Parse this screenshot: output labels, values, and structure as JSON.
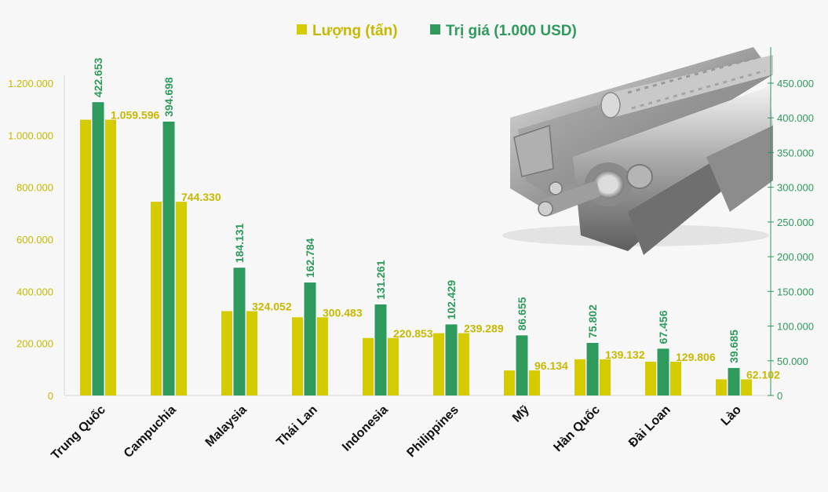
{
  "chart_data": {
    "type": "bar",
    "categories": [
      "Trung Quốc",
      "Campuchia",
      "Malaysia",
      "Thái Lan",
      "Indonesia",
      "Philippines",
      "Mỹ",
      "Hàn Quốc",
      "Đài Loan",
      "Lào"
    ],
    "series": [
      {
        "name": "Lượng (tấn)",
        "axis": "left",
        "color": "#d4cc00",
        "values": [
          1059596,
          744330,
          324052,
          300483,
          220853,
          239289,
          96134,
          139132,
          129806,
          62102
        ],
        "labels": [
          "1.059.596",
          "744.330",
          "324.052",
          "300.483",
          "220.853",
          "239.289",
          "96.134",
          "139.132",
          "129.806",
          "62.102"
        ]
      },
      {
        "name": "Trị giá (1.000 USD)",
        "axis": "right",
        "color": "#2e9a5c",
        "values": [
          422653,
          394698,
          184131,
          162784,
          131261,
          102429,
          86655,
          75802,
          67456,
          39685
        ],
        "labels": [
          "422.653",
          "394.698",
          "184.131",
          "162.784",
          "131.261",
          "102.429",
          "86.655",
          "75.802",
          "67.456",
          "39.685"
        ]
      }
    ],
    "y_left": {
      "range": [
        0,
        1200000
      ],
      "ticks": [
        0,
        200000,
        400000,
        600000,
        800000,
        1000000,
        1200000
      ],
      "tick_labels": [
        "0",
        "200.000",
        "400.000",
        "600.000",
        "800.000",
        "1.000.000",
        "1.200.000"
      ]
    },
    "y_right": {
      "range": [
        0,
        450000
      ],
      "ticks": [
        0,
        50000,
        100000,
        150000,
        200000,
        250000,
        300000,
        350000,
        400000,
        450000
      ],
      "tick_labels": [
        "0",
        "50.000",
        "100.000",
        "150.000",
        "200.000",
        "250.000",
        "300.000",
        "350.000",
        "400.000",
        "450.000"
      ]
    },
    "legend": "top-center",
    "grid": false,
    "decoration": "steel-products-image"
  }
}
